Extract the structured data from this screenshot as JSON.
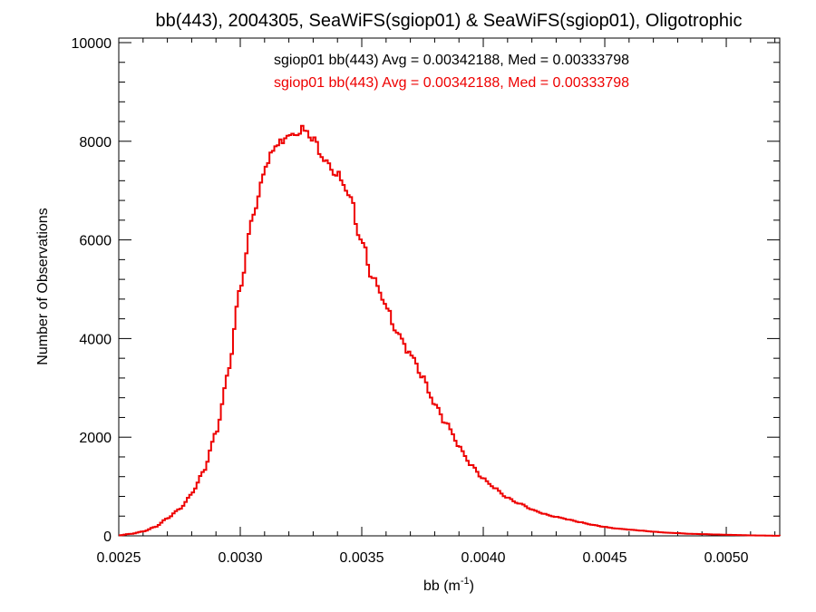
{
  "chart_data": {
    "type": "histogram",
    "title": "bb(443), 2004305, SeaWiFS(sgiop01) & SeaWiFS(sgiop01), Oligotrophic",
    "xlabel_main": "bb (m",
    "xlabel_sup": "-1",
    "xlabel_close": ")",
    "ylabel": "Number of Observations",
    "xlim": [
      0.0025,
      0.00522
    ],
    "ylim": [
      0,
      10000
    ],
    "x_ticks": [
      "0.0025",
      "0.0030",
      "0.0035",
      "0.0040",
      "0.0045",
      "0.0050"
    ],
    "x_tick_values": [
      0.0025,
      0.003,
      0.0035,
      0.004,
      0.0045,
      0.005
    ],
    "y_ticks": [
      "0",
      "2000",
      "4000",
      "6000",
      "8000",
      "10000"
    ],
    "y_tick_values": [
      0,
      2000,
      4000,
      6000,
      8000,
      10000
    ],
    "annotations": [
      {
        "text": "sgiop01 bb(443) Avg = 0.00342188, Med = 0.00333798",
        "color": "#000000"
      },
      {
        "text": "sgiop01 bb(443) Avg = 0.00342188, Med = 0.00333798",
        "color": "#ee0000"
      }
    ],
    "series_color": "#ee0000",
    "points": [
      [
        0.0025,
        10
      ],
      [
        0.00255,
        40
      ],
      [
        0.0026,
        90
      ],
      [
        0.00265,
        180
      ],
      [
        0.0027,
        350
      ],
      [
        0.00275,
        550
      ],
      [
        0.0028,
        850
      ],
      [
        0.00285,
        1300
      ],
      [
        0.0029,
        2100
      ],
      [
        0.00295,
        3300
      ],
      [
        0.003,
        5000
      ],
      [
        0.00305,
        6500
      ],
      [
        0.0031,
        7450
      ],
      [
        0.00315,
        7900
      ],
      [
        0.0032,
        8200
      ],
      [
        0.00325,
        8250
      ],
      [
        0.0033,
        8000
      ],
      [
        0.00335,
        7700
      ],
      [
        0.0034,
        7300
      ],
      [
        0.00345,
        6800
      ],
      [
        0.0035,
        6050
      ],
      [
        0.00355,
        5150
      ],
      [
        0.0036,
        4600
      ],
      [
        0.00365,
        4150
      ],
      [
        0.0037,
        3650
      ],
      [
        0.00375,
        3200
      ],
      [
        0.0038,
        2700
      ],
      [
        0.00385,
        2250
      ],
      [
        0.0039,
        1800
      ],
      [
        0.00395,
        1450
      ],
      [
        0.004,
        1150
      ],
      [
        0.00405,
        950
      ],
      [
        0.0041,
        780
      ],
      [
        0.00415,
        650
      ],
      [
        0.0042,
        530
      ],
      [
        0.00425,
        450
      ],
      [
        0.0043,
        380
      ],
      [
        0.00435,
        330
      ],
      [
        0.0044,
        280
      ],
      [
        0.00445,
        220
      ],
      [
        0.0045,
        180
      ],
      [
        0.00455,
        150
      ],
      [
        0.0046,
        125
      ],
      [
        0.00465,
        105
      ],
      [
        0.0047,
        85
      ],
      [
        0.00475,
        65
      ],
      [
        0.0048,
        55
      ],
      [
        0.00485,
        42
      ],
      [
        0.0049,
        35
      ],
      [
        0.00495,
        28
      ],
      [
        0.005,
        22
      ],
      [
        0.00505,
        16
      ],
      [
        0.0051,
        10
      ],
      [
        0.00515,
        6
      ],
      [
        0.0052,
        3
      ],
      [
        0.00522,
        2
      ]
    ]
  }
}
